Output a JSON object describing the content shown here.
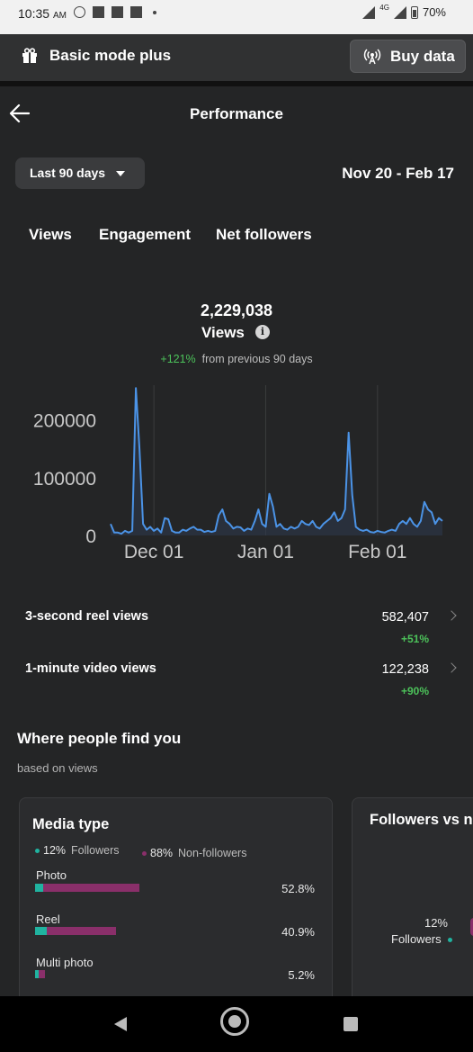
{
  "status_bar": {
    "time": "10:35",
    "ampm": "AM",
    "network": "4G",
    "battery": "70%"
  },
  "basic_mode": {
    "label": "Basic mode plus",
    "buy_label": "Buy data"
  },
  "header": {
    "title": "Performance"
  },
  "filter": {
    "range_label": "Last 90 days",
    "date_range": "Nov 20 - Feb 17"
  },
  "tabs": [
    {
      "label": "Views"
    },
    {
      "label": "Engagement"
    },
    {
      "label": "Net followers"
    }
  ],
  "summary": {
    "total": "2,229,038",
    "metric": "Views",
    "change": "+121%",
    "change_note": "from previous 90 days"
  },
  "chart_data": {
    "type": "line",
    "x_ticks": [
      "Dec 01",
      "Jan 01",
      "Feb 01"
    ],
    "y_ticks": [
      "200000",
      "100000",
      "0"
    ],
    "ylim": [
      0,
      260000
    ],
    "grid": true,
    "color": "#4b93e6",
    "series": [
      {
        "values": [
          20000,
          5000,
          5000,
          3000,
          8000,
          5000,
          8000,
          255000,
          150000,
          20000,
          10000,
          15000,
          8000,
          12000,
          5000,
          30000,
          28000,
          8000,
          5000,
          5000,
          10000,
          8000,
          12000,
          15000,
          10000,
          10000,
          6000,
          8000,
          6000,
          8000,
          35000,
          45000,
          25000,
          20000,
          12000,
          15000,
          14000,
          8000,
          12000,
          10000,
          25000,
          45000,
          20000,
          15000,
          72000,
          50000,
          15000,
          20000,
          12000,
          10000,
          15000,
          12000,
          15000,
          25000,
          20000,
          18000,
          25000,
          15000,
          12000,
          20000,
          25000,
          30000,
          40000,
          25000,
          30000,
          45000,
          178000,
          70000,
          15000,
          10000,
          8000,
          10000,
          6000,
          5000,
          8000,
          6000,
          5000,
          8000,
          10000,
          8000,
          20000,
          25000,
          20000,
          30000,
          20000,
          15000,
          25000,
          58000,
          45000,
          40000,
          20000,
          30000,
          25000
        ]
      }
    ]
  },
  "stats": [
    {
      "label": "3-second reel views",
      "value": "582,407",
      "change": "+51%"
    },
    {
      "label": "1-minute video views",
      "value": "122,238",
      "change": "+90%"
    }
  ],
  "where": {
    "title": "Where people find you",
    "subtitle": "based on views",
    "media_card": {
      "title": "Media type",
      "legend": [
        {
          "value": "12%",
          "label": "Followers",
          "color": "#20b3a0"
        },
        {
          "value": "88%",
          "label": "Non-followers",
          "color": "#8a2f6a"
        }
      ],
      "items": [
        {
          "label": "Photo",
          "pct": "52.8%",
          "share": 0.528,
          "followers_fraction": 0.08
        },
        {
          "label": "Reel",
          "pct": "40.9%",
          "share": 0.409,
          "followers_fraction": 0.15
        },
        {
          "label": "Multi photo",
          "pct": "5.2%",
          "share": 0.052,
          "followers_fraction": 0.3
        }
      ]
    },
    "followers_card": {
      "title": "Followers vs no",
      "pct": "12%",
      "label": "Followers"
    }
  }
}
